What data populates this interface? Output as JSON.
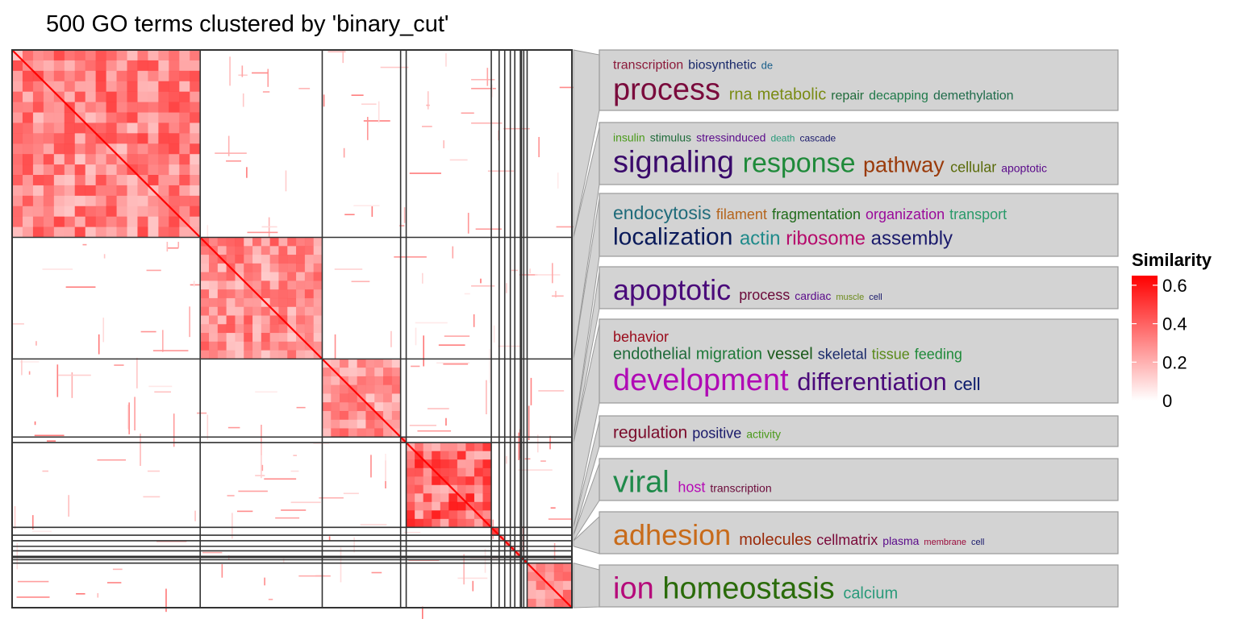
{
  "chart_data": {
    "type": "heatmap",
    "title": "500 GO terms clustered by 'binary_cut'",
    "n_terms": 500,
    "cluster_sizes": [
      168,
      109,
      70,
      5,
      76,
      7,
      5,
      5,
      4,
      5,
      1,
      2,
      3,
      40
    ],
    "colorbar": {
      "title": "Similarity",
      "ticks": [
        0.6,
        0.4,
        0.2,
        0
      ],
      "range": [
        0,
        0.65
      ],
      "colors": [
        "#ffffff",
        "#ff0000"
      ]
    },
    "mean_similarity": {
      "within_cluster": [
        0.35,
        0.32,
        0.3,
        0.45,
        0.42,
        0.55,
        0.55,
        0.55,
        0.55,
        0.55,
        0.6,
        0.55,
        0.55,
        0.3
      ],
      "between_cluster": 0.05
    },
    "word_clouds": [
      {
        "cluster": 1,
        "lines": [
          [
            {
              "word": "transcription",
              "size": 16,
              "color": "#8b1a3a"
            },
            {
              "word": "biosynthetic",
              "size": 16,
              "color": "#1a2a6b"
            },
            {
              "word": "de",
              "size": 13,
              "color": "#1a5f8a"
            }
          ],
          [
            {
              "word": "process",
              "size": 38,
              "color": "#7a0b3c"
            },
            {
              "word": "rna",
              "size": 20,
              "color": "#7a8b14"
            },
            {
              "word": "metabolic",
              "size": 20,
              "color": "#7a8b14"
            },
            {
              "word": "repair",
              "size": 16,
              "color": "#1f6b3a"
            },
            {
              "word": "decapping",
              "size": 16,
              "color": "#1f7a4a"
            },
            {
              "word": "demethylation",
              "size": 16,
              "color": "#1f6b4a"
            }
          ]
        ]
      },
      {
        "cluster": 2,
        "lines": [
          [
            {
              "word": "insulin",
              "size": 14,
              "color": "#4a9a1a"
            },
            {
              "word": "stimulus",
              "size": 14,
              "color": "#1f6b3a"
            },
            {
              "word": "stressinduced",
              "size": 14,
              "color": "#5a0a8a"
            },
            {
              "word": "death",
              "size": 12,
              "color": "#2a9a7a"
            },
            {
              "word": "cascade",
              "size": 12,
              "color": "#1a1a6b"
            }
          ],
          [
            {
              "word": "signaling",
              "size": 38,
              "color": "#3a0a6b"
            },
            {
              "word": "response",
              "size": 34,
              "color": "#1f8a3a"
            },
            {
              "word": "pathway",
              "size": 27,
              "color": "#9a3a0a"
            },
            {
              "word": "cellular",
              "size": 18,
              "color": "#5a6b0a"
            },
            {
              "word": "apoptotic",
              "size": 14,
              "color": "#5a0a8a"
            }
          ]
        ]
      },
      {
        "cluster": 3,
        "lines": [
          [
            {
              "word": "endocytosis",
              "size": 23,
              "color": "#1f6b7a"
            },
            {
              "word": "filament",
              "size": 18,
              "color": "#b5651d"
            },
            {
              "word": "fragmentation",
              "size": 18,
              "color": "#1f6b1a"
            },
            {
              "word": "organization",
              "size": 18,
              "color": "#9a0a9a"
            },
            {
              "word": "transport",
              "size": 18,
              "color": "#2a9a6a"
            }
          ],
          [
            {
              "word": "localization",
              "size": 30,
              "color": "#0a1a5a"
            },
            {
              "word": "actin",
              "size": 24,
              "color": "#1f8a8a"
            },
            {
              "word": "ribosome",
              "size": 24,
              "color": "#b50a6b"
            },
            {
              "word": "assembly",
              "size": 24,
              "color": "#1a1a6b"
            }
          ]
        ]
      },
      {
        "cluster": 4,
        "lines": [
          [
            {
              "word": "apoptotic",
              "size": 36,
              "color": "#4a0a7a"
            },
            {
              "word": "process",
              "size": 18,
              "color": "#6b0a3a"
            },
            {
              "word": "cardiac",
              "size": 14,
              "color": "#5a0a8a"
            },
            {
              "word": "muscle",
              "size": 11,
              "color": "#6b8a1a"
            },
            {
              "word": "cell",
              "size": 11,
              "color": "#1a1a6b"
            }
          ]
        ]
      },
      {
        "cluster": 5,
        "lines": [
          [
            {
              "word": "behavior",
              "size": 18,
              "color": "#9a0a1a"
            }
          ],
          [
            {
              "word": "endothelial",
              "size": 20,
              "color": "#1f6b3a"
            },
            {
              "word": "migration",
              "size": 20,
              "color": "#1f7a3a"
            },
            {
              "word": "vessel",
              "size": 20,
              "color": "#1a5a1a"
            },
            {
              "word": "skeletal",
              "size": 18,
              "color": "#1a2a6b"
            },
            {
              "word": "tissue",
              "size": 18,
              "color": "#5a8a1a"
            },
            {
              "word": "feeding",
              "size": 18,
              "color": "#1f8a3a"
            }
          ],
          [
            {
              "word": "development",
              "size": 38,
              "color": "#b00ab5"
            },
            {
              "word": "differentiation",
              "size": 31,
              "color": "#4a0a7a"
            },
            {
              "word": "cell",
              "size": 22,
              "color": "#0a1a6b"
            }
          ]
        ]
      },
      {
        "cluster": 6,
        "lines": [
          [
            {
              "word": "regulation",
              "size": 21,
              "color": "#7a0a2a"
            },
            {
              "word": "positive",
              "size": 18,
              "color": "#1a1a6b"
            },
            {
              "word": "activity",
              "size": 14,
              "color": "#4a9a1a"
            }
          ]
        ]
      },
      {
        "cluster": 7,
        "lines": [
          [
            {
              "word": "viral",
              "size": 38,
              "color": "#1f8a4a"
            },
            {
              "word": "host",
              "size": 18,
              "color": "#b50ab5"
            },
            {
              "word": "transcription",
              "size": 14,
              "color": "#6b0a3a"
            }
          ]
        ]
      },
      {
        "cluster": 8,
        "lines": [
          [
            {
              "word": "adhesion",
              "size": 36,
              "color": "#c86b1a"
            },
            {
              "word": "molecules",
              "size": 20,
              "color": "#9a2a0a"
            },
            {
              "word": "cellmatrix",
              "size": 18,
              "color": "#7a0a3a"
            },
            {
              "word": "plasma",
              "size": 14,
              "color": "#5a0a8a"
            },
            {
              "word": "membrane",
              "size": 11,
              "color": "#9a0a3a"
            },
            {
              "word": "cell",
              "size": 11,
              "color": "#1a1a6b"
            }
          ]
        ]
      },
      {
        "cluster": 14,
        "lines": [
          [
            {
              "word": "ion",
              "size": 38,
              "color": "#b50a7a"
            },
            {
              "word": "homeostasis",
              "size": 38,
              "color": "#2a6b0a"
            },
            {
              "word": "calcium",
              "size": 20,
              "color": "#2a9a7a"
            }
          ]
        ]
      }
    ]
  }
}
